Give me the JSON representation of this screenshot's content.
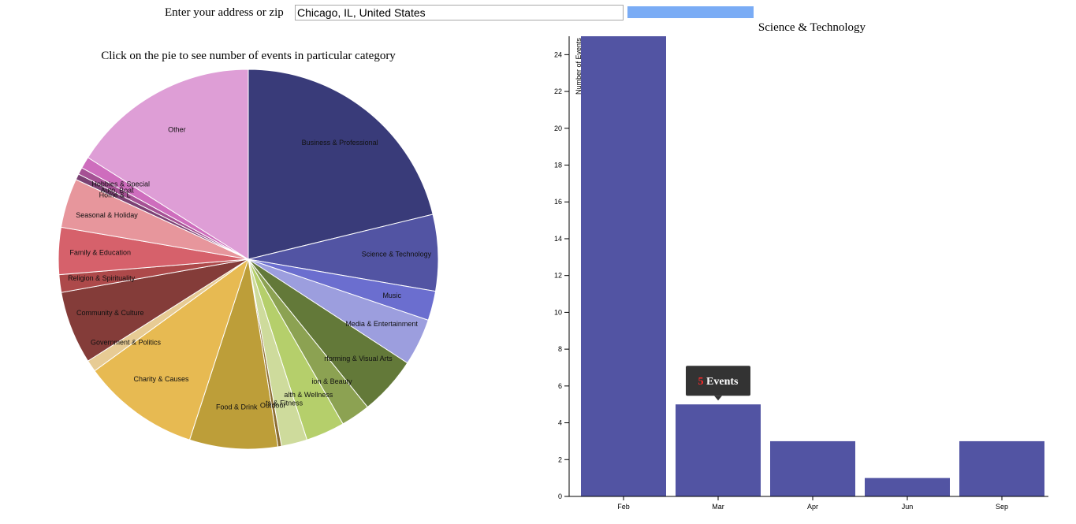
{
  "search": {
    "label": "Enter your address or zip",
    "value": "Chicago, IL, United States",
    "button_color": "#7aacf5"
  },
  "pie": {
    "title": "Click on the pie to see number of events in particular category"
  },
  "chart_data": [
    {
      "type": "pie",
      "title": "Click on the pie to see number of events in particular category",
      "slices": [
        {
          "label": "Business & Professional",
          "value": 21.2,
          "color": "#393b79"
        },
        {
          "label": "Science & Technology",
          "value": 6.5,
          "color": "#5254a3"
        },
        {
          "label": "Music",
          "value": 2.5,
          "color": "#6b6ecf"
        },
        {
          "label": "Media & Entertainment",
          "value": 4.0,
          "color": "#9c9ede"
        },
        {
          "label": "Performing & Visual Arts",
          "value": 5.0,
          "color": "#637939"
        },
        {
          "label": "Fashion & Beauty",
          "value": 2.5,
          "color": "#8ca252"
        },
        {
          "label": "Health & Wellness",
          "value": 3.3,
          "color": "#b5cf6b"
        },
        {
          "label": "Sports & Fitness",
          "value": 2.2,
          "color": "#cedb9c"
        },
        {
          "label": "Outdoor",
          "value": 0.3,
          "color": "#8c6d31"
        },
        {
          "label": "Food & Drink",
          "value": 7.5,
          "color": "#bd9e39"
        },
        {
          "label": "Charity & Causes",
          "value": 10.0,
          "color": "#e7ba52"
        },
        {
          "label": "Government & Politics",
          "value": 1.0,
          "color": "#e7cb94"
        },
        {
          "label": "Community & Culture",
          "value": 6.2,
          "color": "#843c39"
        },
        {
          "label": "Religion & Spirituality",
          "value": 1.5,
          "color": "#ad494a"
        },
        {
          "label": "Family & Education",
          "value": 4.0,
          "color": "#d6616b"
        },
        {
          "label": "Seasonal & Holiday",
          "value": 4.2,
          "color": "#e7969c"
        },
        {
          "label": "Home & Lifestyle",
          "value": 0.5,
          "color": "#7b4173"
        },
        {
          "label": "Auto, Boat & Air",
          "value": 0.6,
          "color": "#a55194"
        },
        {
          "label": "Hobbies & Special Interest",
          "value": 1.0,
          "color": "#ce6dbd"
        },
        {
          "label": "Other",
          "value": 16.0,
          "color": "#de9ed6"
        }
      ],
      "visible_labels": [
        "Business & Professional",
        "Science & Technology",
        "Music",
        "Media & Entertainment",
        "rforming & Visual Arts",
        "ion & Beauty",
        "alth & Wellness",
        "ts & Fitness",
        "Outdoor",
        "Food & Drink",
        "Charity & Causes",
        "Government & Politics",
        "Community & Culture",
        "Religion & Spirituality",
        "Family & Education",
        "Seasonal & Holiday",
        "Home & L",
        "Auto, Boat",
        "Hobbies & Special",
        "Other"
      ]
    },
    {
      "type": "bar",
      "title": "Science & Technology",
      "ylabel": "Number of Events",
      "categories": [
        "Feb",
        "Mar",
        "Apr",
        "Jun",
        "Sep"
      ],
      "values": [
        25,
        5,
        3,
        1,
        3
      ],
      "ylim": [
        0,
        25
      ],
      "yticks": [
        0,
        2,
        4,
        6,
        8,
        10,
        12,
        14,
        16,
        18,
        20,
        22,
        24
      ],
      "bar_color": "#5254a3",
      "tooltip": {
        "category": "Mar",
        "count": "5",
        "suffix": " Events"
      }
    }
  ]
}
